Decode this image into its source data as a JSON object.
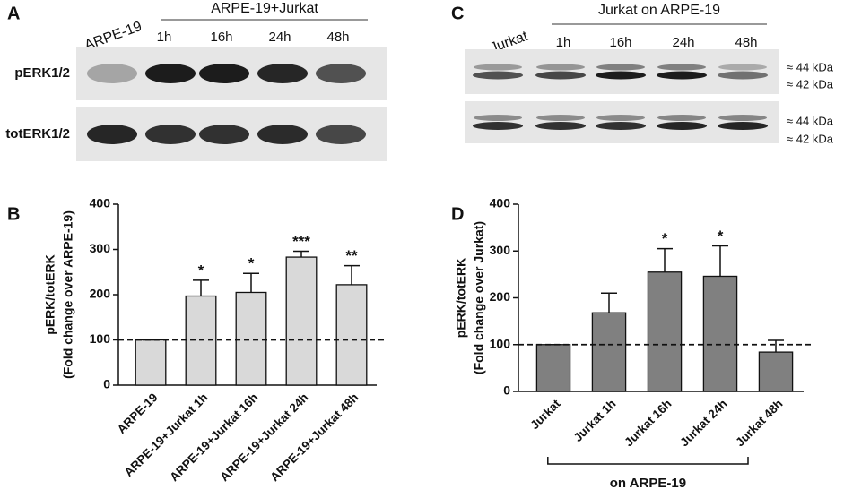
{
  "blots": [
    {
      "panel": "A",
      "group_label": "ARPE-19+Jurkat",
      "control_label": "ARPE-19",
      "lanes": [
        "1h",
        "16h",
        "24h",
        "48h"
      ],
      "rows": [
        "pERK1/2",
        "totERK1/2"
      ]
    },
    {
      "panel": "C",
      "group_label": "Jurkat on ARPE-19",
      "control_label": "Jurkat",
      "lanes": [
        "1h",
        "16h",
        "24h",
        "48h"
      ],
      "markers": [
        "≈ 44 kDa",
        "≈ 42 kDa",
        "≈ 44 kDa",
        "≈ 42 kDa"
      ]
    }
  ],
  "chart_data": [
    {
      "type": "bar",
      "panel": "B",
      "ylabel": [
        "pERK/totERK",
        "(Fold change over ARPE-19)"
      ],
      "categories": [
        "ARPE-19",
        "ARPE-19+Jurkat 1h",
        "ARPE-19+Jurkat 16h",
        "ARPE-19+Jurkat 24h",
        "ARPE-19+Jurkat 48h"
      ],
      "values": [
        100,
        197,
        205,
        283,
        222
      ],
      "errors": [
        0,
        35,
        42,
        13,
        42
      ],
      "significance": [
        null,
        "*",
        "*",
        "***",
        "**"
      ],
      "reference_line": 100,
      "color": "#d9d9d9",
      "ylim": [
        0,
        400
      ],
      "yticks": [
        0,
        100,
        200,
        300,
        400
      ]
    },
    {
      "type": "bar",
      "panel": "D",
      "ylabel": [
        "pERK/totERK",
        "(Fold change over Jurkat)"
      ],
      "categories": [
        "Jurkat",
        "Jurkat 1h",
        "Jurkat 16h",
        "Jurkat 24h",
        "Jurkat 48h"
      ],
      "values": [
        100,
        168,
        255,
        246,
        84
      ],
      "errors": [
        0,
        42,
        50,
        65,
        25
      ],
      "significance": [
        null,
        null,
        "*",
        "*",
        null
      ],
      "reference_line": 100,
      "color": "#808080",
      "xgroup_label": "on ARPE-19",
      "ylim": [
        0,
        400
      ],
      "yticks": [
        0,
        100,
        200,
        300,
        400
      ]
    }
  ]
}
